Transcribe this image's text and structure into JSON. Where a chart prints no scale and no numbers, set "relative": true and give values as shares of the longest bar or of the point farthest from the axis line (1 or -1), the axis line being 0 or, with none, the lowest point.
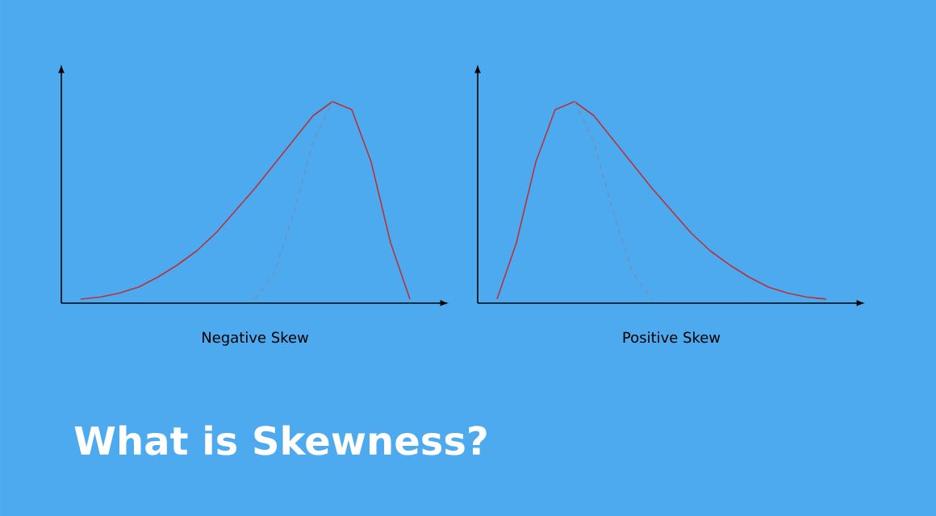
{
  "chart_data": [
    {
      "type": "line",
      "title": "What is Skewness?",
      "xlabel": "Negative Skew",
      "relative": true,
      "marker": "none",
      "categories": [
        null,
        null,
        null,
        null,
        null,
        null,
        null,
        null,
        null,
        null,
        null,
        null,
        null,
        null,
        null,
        null,
        null,
        null
      ],
      "series": [
        {
          "color": "#b8323a",
          "line_style": "solid",
          "values": [
            0.02,
            0.03,
            0.05,
            0.08,
            0.13,
            0.19,
            0.26,
            0.35,
            0.46,
            0.57,
            0.69,
            0.81,
            0.93,
            1.0,
            0.96,
            0.7,
            0.3,
            0.02
          ]
        },
        {
          "color": "#6f93b8",
          "line_style": "dashed",
          "values": [
            null,
            null,
            null,
            null,
            null,
            null,
            null,
            null,
            null,
            0.02,
            0.15,
            0.45,
            0.8,
            1.0,
            null,
            null,
            null,
            null
          ]
        }
      ]
    },
    {
      "type": "line",
      "xlabel": "Positive Skew",
      "relative": true,
      "marker": "none",
      "categories": [
        null,
        null,
        null,
        null,
        null,
        null,
        null,
        null,
        null,
        null,
        null,
        null,
        null,
        null,
        null,
        null,
        null,
        null
      ],
      "series": [
        {
          "color": "#b8323a",
          "line_style": "solid",
          "values": [
            0.02,
            0.3,
            0.7,
            0.96,
            1.0,
            0.93,
            0.81,
            0.69,
            0.57,
            0.46,
            0.35,
            0.26,
            0.19,
            0.13,
            0.08,
            0.05,
            0.03,
            0.02
          ]
        },
        {
          "color": "#6f93b8",
          "line_style": "dashed",
          "values": [
            null,
            null,
            null,
            null,
            1.0,
            0.8,
            0.45,
            0.15,
            0.02,
            null,
            null,
            null,
            null,
            null,
            null,
            null,
            null,
            null
          ]
        }
      ]
    }
  ]
}
